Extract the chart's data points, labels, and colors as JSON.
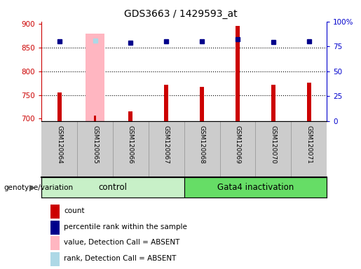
{
  "title": "GDS3663 / 1429593_at",
  "samples": [
    "GSM120064",
    "GSM120065",
    "GSM120066",
    "GSM120067",
    "GSM120068",
    "GSM120069",
    "GSM120070",
    "GSM120071"
  ],
  "red_bar_values": [
    755,
    706,
    716,
    771,
    767,
    895,
    772,
    776
  ],
  "pink_bar_values": [
    null,
    880,
    null,
    null,
    null,
    null,
    null,
    null
  ],
  "blue_dot_values": [
    863,
    865,
    860,
    863,
    863,
    867,
    862,
    863
  ],
  "light_blue_dot_values": [
    null,
    864,
    null,
    null,
    null,
    null,
    null,
    null
  ],
  "absent_mask": [
    false,
    true,
    false,
    false,
    false,
    false,
    false,
    false
  ],
  "ylim_left": [
    695,
    905
  ],
  "ylim_right": [
    0,
    100
  ],
  "yticks_left": [
    700,
    750,
    800,
    850,
    900
  ],
  "yticks_right": [
    0,
    25,
    50,
    75,
    100
  ],
  "yticklabels_right": [
    "0",
    "25",
    "50",
    "75",
    "100%"
  ],
  "group_control_color": "#C8F0C8",
  "group_gata4_color": "#66DD66",
  "group_label": "genotype/variation",
  "left_axis_color": "#CC0000",
  "right_axis_color": "#0000CC",
  "bar_color": "#CC0000",
  "pink_bar_color": "#FFB6C1",
  "blue_dot_color": "#00008B",
  "light_blue_dot_color": "#ADD8E6",
  "bg_color": "#CCCCCC",
  "plot_bg_color": "#FFFFFF",
  "dotted_grid_levels": [
    750,
    800,
    850
  ],
  "legend_items": [
    {
      "label": "count",
      "color": "#CC0000"
    },
    {
      "label": "percentile rank within the sample",
      "color": "#00008B"
    },
    {
      "label": "value, Detection Call = ABSENT",
      "color": "#FFB6C1"
    },
    {
      "label": "rank, Detection Call = ABSENT",
      "color": "#ADD8E6"
    }
  ]
}
